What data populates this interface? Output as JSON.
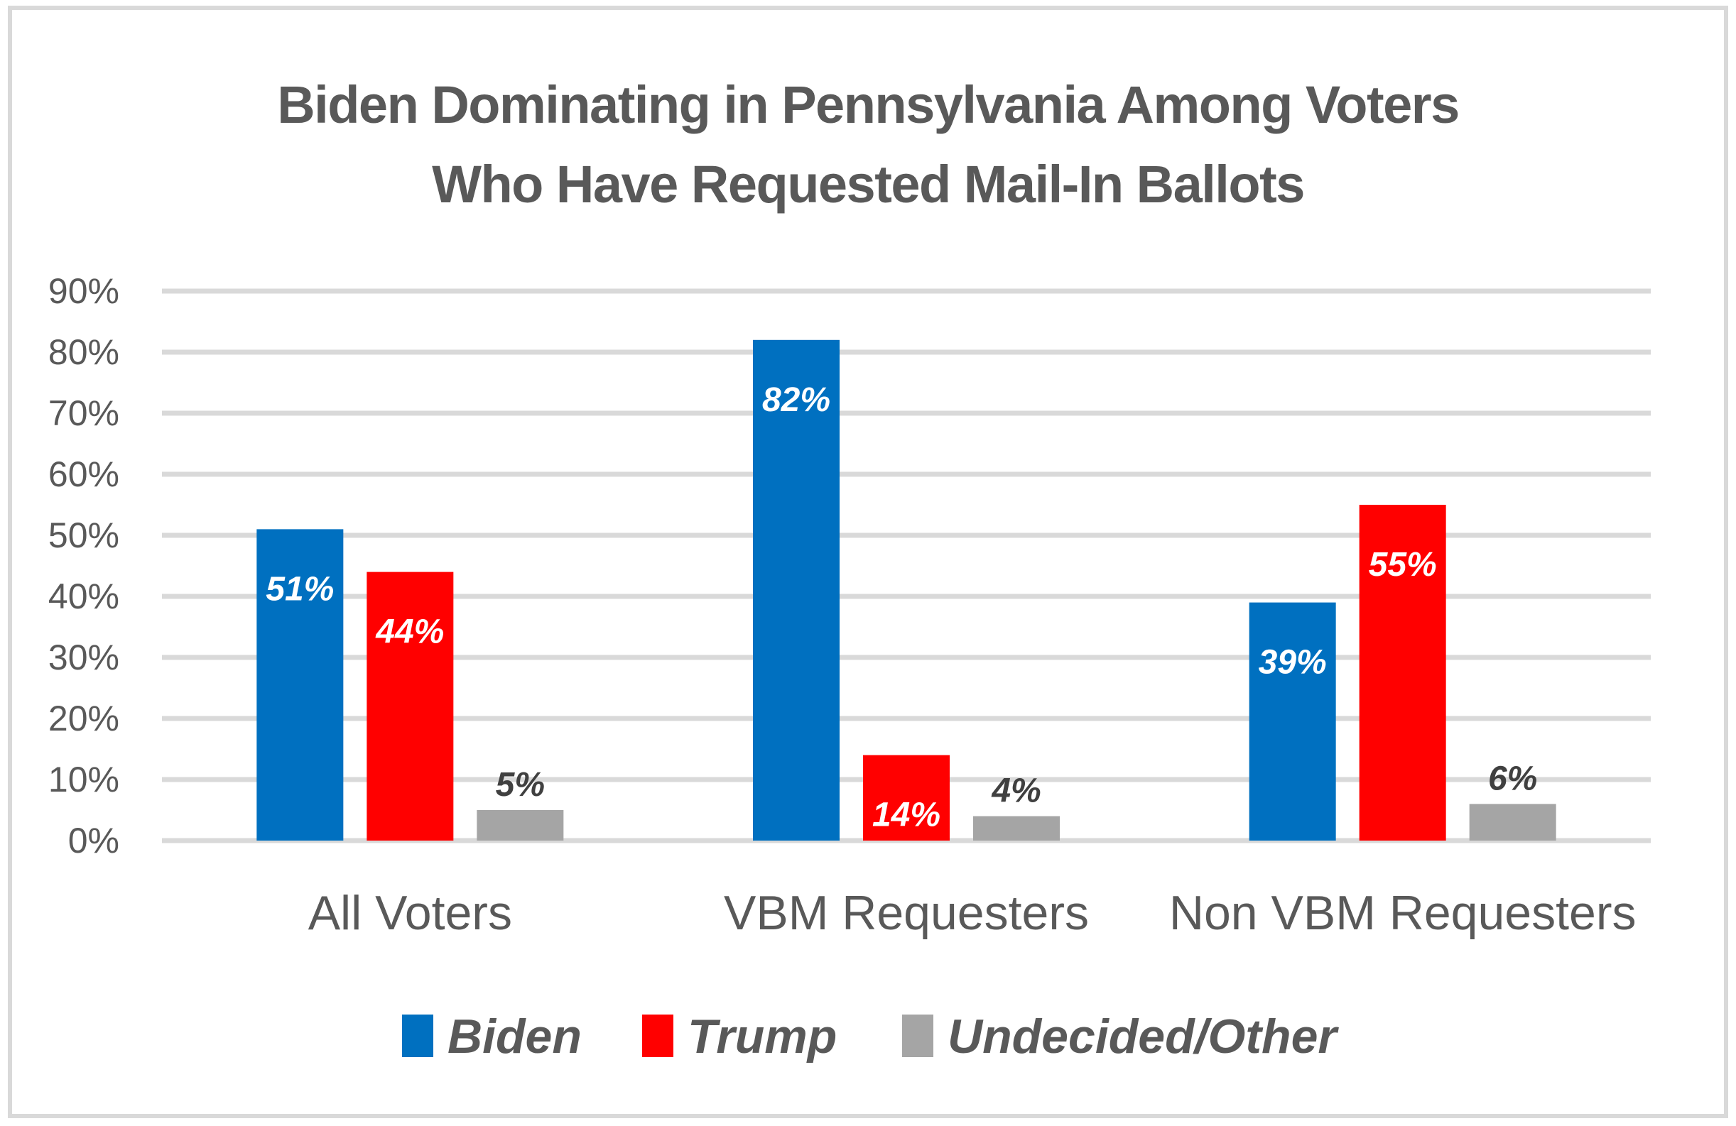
{
  "chart_data": {
    "type": "bar",
    "title": "Biden Dominating in Pennsylvania Among Voters Who Have Requested Mail-In Ballots",
    "title_lines": [
      "Biden Dominating in Pennsylvania Among Voters",
      "Who Have Requested Mail-In Ballots"
    ],
    "xlabel": "",
    "ylabel": "",
    "categories": [
      "All Voters",
      "VBM Requesters",
      "Non VBM Requesters"
    ],
    "series": [
      {
        "name": "Biden",
        "color": "#0070c0",
        "label_color": "#ffffff",
        "label_position": "inside-end",
        "values": [
          51,
          82,
          39
        ],
        "labels": [
          "51%",
          "82%",
          "39%"
        ]
      },
      {
        "name": "Trump",
        "color": "#ff0000",
        "label_color": "#ffffff",
        "label_position": "inside-end",
        "values": [
          44,
          14,
          55
        ],
        "labels": [
          "44%",
          "14%",
          "55%"
        ]
      },
      {
        "name": "Undecided/Other",
        "color": "#a5a5a5",
        "label_color": "#404040",
        "label_position": "outside-end",
        "values": [
          5,
          4,
          6
        ],
        "labels": [
          "5%",
          "4%",
          "6%"
        ]
      }
    ],
    "ylim": [
      0,
      90
    ],
    "yticks": [
      0,
      10,
      20,
      30,
      40,
      50,
      60,
      70,
      80,
      90
    ],
    "ytick_labels": [
      "0%",
      "10%",
      "20%",
      "30%",
      "40%",
      "50%",
      "60%",
      "70%",
      "80%",
      "90%"
    ],
    "grid": true,
    "legend": {
      "position": "bottom",
      "entries": [
        "Biden",
        "Trump",
        "Undecided/Other"
      ]
    }
  }
}
